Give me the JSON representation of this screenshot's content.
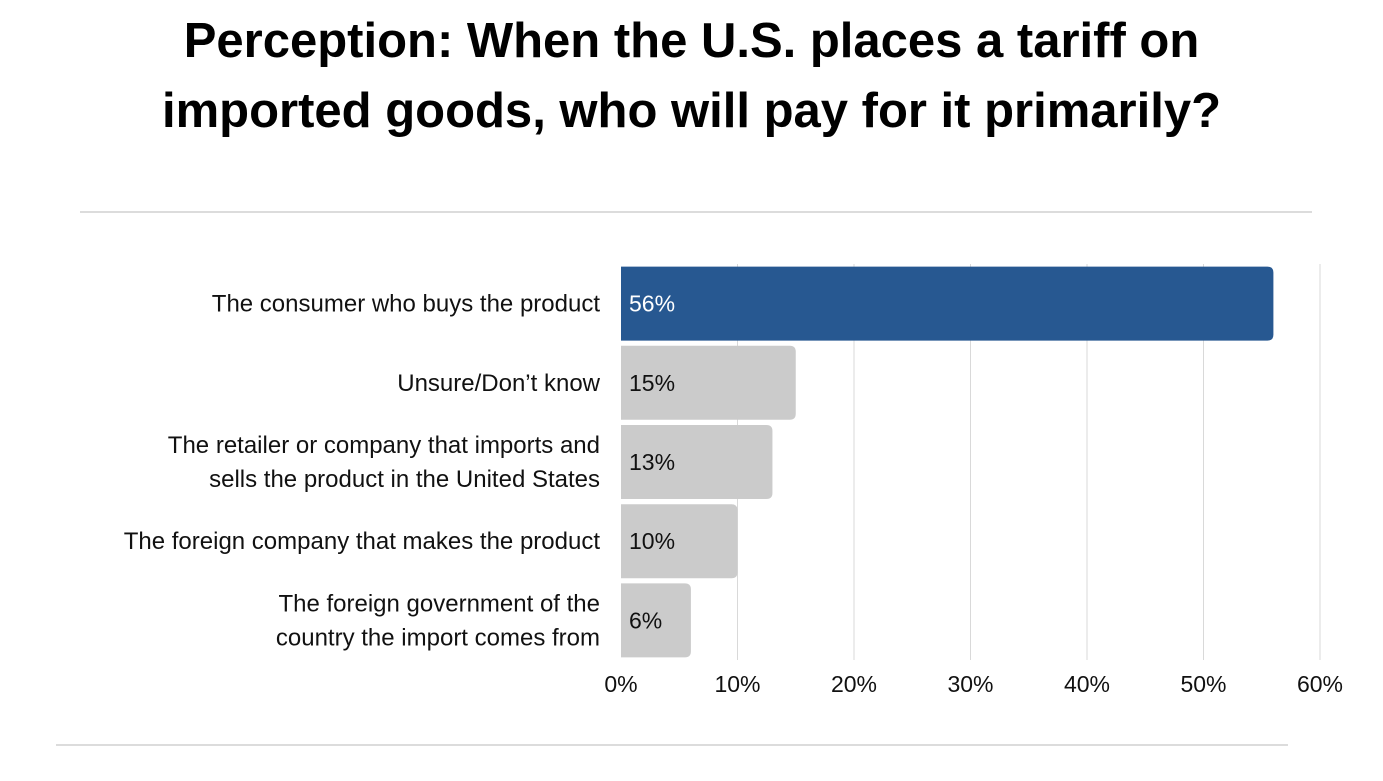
{
  "chart_data": {
    "type": "bar",
    "orientation": "horizontal",
    "title": [
      "Perception: When the U.S. places a tariff on",
      "imported goods, who will pay for it primarily?"
    ],
    "categories": [
      [
        "The consumer who buys the product"
      ],
      [
        "Unsure/Don’t know"
      ],
      [
        "The retailer or company that imports and",
        "sells the product in the United States"
      ],
      [
        "The foreign company that makes the product"
      ],
      [
        "The foreign government of the",
        "country the import comes from"
      ]
    ],
    "values": [
      56,
      15,
      13,
      10,
      6
    ],
    "value_labels": [
      "56%",
      "15%",
      "13%",
      "10%",
      "6%"
    ],
    "xlim": [
      0,
      60
    ],
    "x_ticks": [
      0,
      10,
      20,
      30,
      40,
      50,
      60
    ],
    "x_tick_labels": [
      "0%",
      "10%",
      "20%",
      "30%",
      "40%",
      "50%",
      "60%"
    ],
    "grid": "vertical",
    "colors": {
      "highlight": "#275891",
      "default": "#cbcbcb",
      "highlight_text": "#ffffff",
      "default_text": "#111111",
      "grid": "#d9d9d9"
    },
    "highlight_index": 0
  }
}
